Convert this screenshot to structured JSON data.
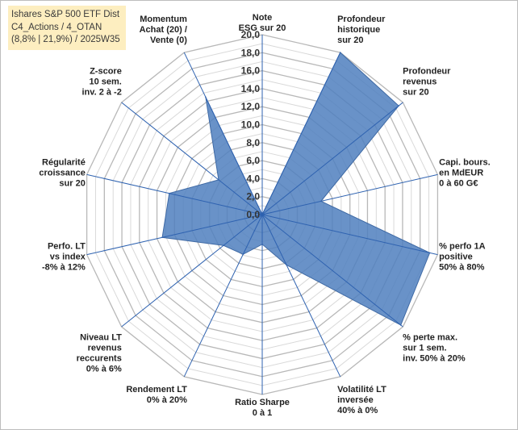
{
  "title_lines": [
    "Ishares S&P 500 ETF Dist",
    "C4_Actions / 4_OTAN",
    "(8,8% | 21,9%) / 2025W35"
  ],
  "chart_data": {
    "type": "radar",
    "rmin": 0,
    "rmax": 20,
    "ticks": [
      "0,0",
      "2,0",
      "4,0",
      "6,0",
      "8,0",
      "10,0",
      "12,0",
      "14,0",
      "16,0",
      "18,0",
      "20,0"
    ],
    "tick_values": [
      0,
      2,
      4,
      6,
      8,
      10,
      12,
      14,
      16,
      18,
      20
    ],
    "axes": [
      [
        "Note",
        "ESG sur 20"
      ],
      [
        "Profondeur",
        "historique",
        "sur 20"
      ],
      [
        "Profondeur",
        "revenus",
        "sur 20"
      ],
      [
        "Capi. bours.",
        "en MdEUR",
        "0 à 60 G€"
      ],
      [
        "% perfo 1A",
        "positive",
        "50% à 80%"
      ],
      [
        "% perte max.",
        "sur 1 sem.",
        "inv. 50% à 20%"
      ],
      [
        "Volatilité LT",
        "inversée",
        "40% à 0%"
      ],
      [
        "Ratio Sharpe",
        "0 à 1"
      ],
      [
        "Rendement LT",
        "0% à 20%"
      ],
      [
        "Niveau LT",
        "revenus",
        "reccurents",
        "0% à 6%"
      ],
      [
        "Perfo. LT",
        "vs index",
        "-8% à 12%"
      ],
      [
        "Régularité",
        "croissance",
        "sur 20"
      ],
      [
        "Z-score",
        "10 sem.",
        "inv. 2 à -2"
      ],
      [
        "Momentum",
        "Achat (20) /",
        "Vente (0)"
      ]
    ],
    "series": [
      {
        "values": [
          0,
          20,
          19.4,
          6.7,
          19.1,
          19.7,
          6.2,
          3.3,
          4.9,
          5.5,
          11.4,
          10.6,
          6.2,
          14.5
        ],
        "color": "#4f7fbe"
      }
    ],
    "grid": true
  }
}
